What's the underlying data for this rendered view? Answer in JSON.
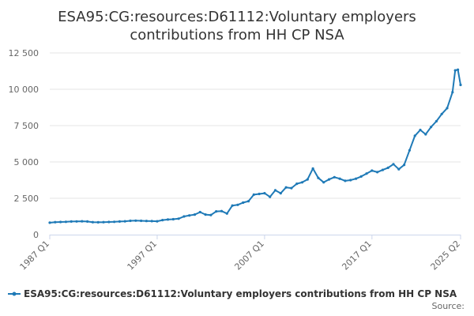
{
  "chart_data": {
    "type": "line",
    "title_lines": [
      "ESA95:CG:resources:D61112:Voluntary employers",
      "contributions from HH CP NSA"
    ],
    "ylim": [
      0,
      12500
    ],
    "yticks": [
      {
        "value": 0,
        "label": "0"
      },
      {
        "value": 2500,
        "label": "2 500"
      },
      {
        "value": 5000,
        "label": "5 000"
      },
      {
        "value": 7500,
        "label": "7 500"
      },
      {
        "value": 10000,
        "label": "10 000"
      },
      {
        "value": 12500,
        "label": "12 500"
      }
    ],
    "xlim": [
      1987.0,
      2025.25
    ],
    "xticks": [
      {
        "value": 1987.0,
        "label": "1987 Q1"
      },
      {
        "value": 1997.0,
        "label": "1997 Q1"
      },
      {
        "value": 2007.0,
        "label": "2007 Q1"
      },
      {
        "value": 2017.0,
        "label": "2017 Q1"
      },
      {
        "value": 2025.25,
        "label": "2025 Q2"
      }
    ],
    "grid": true,
    "legend_position": "bottom",
    "series": [
      {
        "name": "ESA95:CG:resources:D61112:Voluntary employers contributions from HH CP NSA",
        "color": "#1f7ab7",
        "points": [
          [
            1987.0,
            820
          ],
          [
            1987.5,
            860
          ],
          [
            1988.0,
            870
          ],
          [
            1988.5,
            880
          ],
          [
            1989.0,
            900
          ],
          [
            1989.5,
            910
          ],
          [
            1990.0,
            920
          ],
          [
            1990.5,
            900
          ],
          [
            1991.0,
            860
          ],
          [
            1991.5,
            850
          ],
          [
            1992.0,
            860
          ],
          [
            1992.5,
            870
          ],
          [
            1993.0,
            880
          ],
          [
            1993.5,
            900
          ],
          [
            1994.0,
            920
          ],
          [
            1994.5,
            950
          ],
          [
            1995.0,
            960
          ],
          [
            1995.5,
            950
          ],
          [
            1996.0,
            940
          ],
          [
            1996.5,
            930
          ],
          [
            1997.0,
            920
          ],
          [
            1997.5,
            1000
          ],
          [
            1998.0,
            1040
          ],
          [
            1998.5,
            1060
          ],
          [
            1999.0,
            1100
          ],
          [
            1999.5,
            1250
          ],
          [
            2000.0,
            1320
          ],
          [
            2000.5,
            1380
          ],
          [
            2001.0,
            1550
          ],
          [
            2001.5,
            1380
          ],
          [
            2002.0,
            1350
          ],
          [
            2002.5,
            1600
          ],
          [
            2003.0,
            1620
          ],
          [
            2003.5,
            1450
          ],
          [
            2004.0,
            2000
          ],
          [
            2004.5,
            2050
          ],
          [
            2005.0,
            2200
          ],
          [
            2005.5,
            2300
          ],
          [
            2006.0,
            2750
          ],
          [
            2006.5,
            2800
          ],
          [
            2007.0,
            2850
          ],
          [
            2007.5,
            2600
          ],
          [
            2008.0,
            3050
          ],
          [
            2008.5,
            2850
          ],
          [
            2009.0,
            3250
          ],
          [
            2009.5,
            3200
          ],
          [
            2010.0,
            3500
          ],
          [
            2010.5,
            3600
          ],
          [
            2011.0,
            3800
          ],
          [
            2011.5,
            4550
          ],
          [
            2012.0,
            3900
          ],
          [
            2012.5,
            3600
          ],
          [
            2013.0,
            3800
          ],
          [
            2013.5,
            3950
          ],
          [
            2014.0,
            3850
          ],
          [
            2014.5,
            3700
          ],
          [
            2015.0,
            3750
          ],
          [
            2015.5,
            3850
          ],
          [
            2016.0,
            4000
          ],
          [
            2016.5,
            4200
          ],
          [
            2017.0,
            4400
          ],
          [
            2017.5,
            4300
          ],
          [
            2018.0,
            4450
          ],
          [
            2018.5,
            4600
          ],
          [
            2019.0,
            4850
          ],
          [
            2019.5,
            4500
          ],
          [
            2020.0,
            4800
          ],
          [
            2020.5,
            5800
          ],
          [
            2021.0,
            6800
          ],
          [
            2021.5,
            7200
          ],
          [
            2022.0,
            6900
          ],
          [
            2022.5,
            7400
          ],
          [
            2023.0,
            7800
          ],
          [
            2023.5,
            8300
          ],
          [
            2024.0,
            8700
          ],
          [
            2024.5,
            9800
          ],
          [
            2024.75,
            11300
          ],
          [
            2025.0,
            11350
          ],
          [
            2025.25,
            10300
          ]
        ]
      }
    ],
    "source_label": "Source:"
  }
}
